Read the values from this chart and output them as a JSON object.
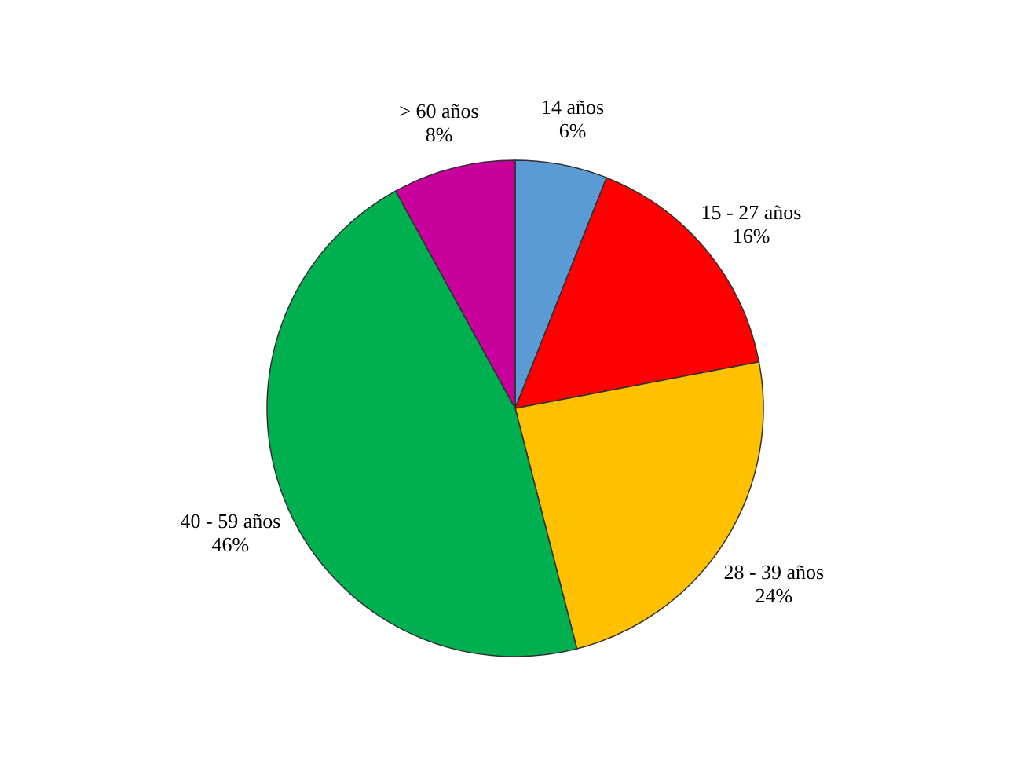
{
  "chart_data": {
    "type": "pie",
    "categories": [
      "14 años",
      "15 - 27 años",
      "28 - 39 años",
      "40 - 59 años",
      "> 60 años"
    ],
    "values": [
      6,
      16,
      24,
      46,
      8
    ],
    "colors": [
      "#5b9bd5",
      "#ff0000",
      "#ffc000",
      "#00b050",
      "#c8009c"
    ],
    "value_labels": [
      "6%",
      "16%",
      "24%",
      "46%",
      "8%"
    ]
  }
}
